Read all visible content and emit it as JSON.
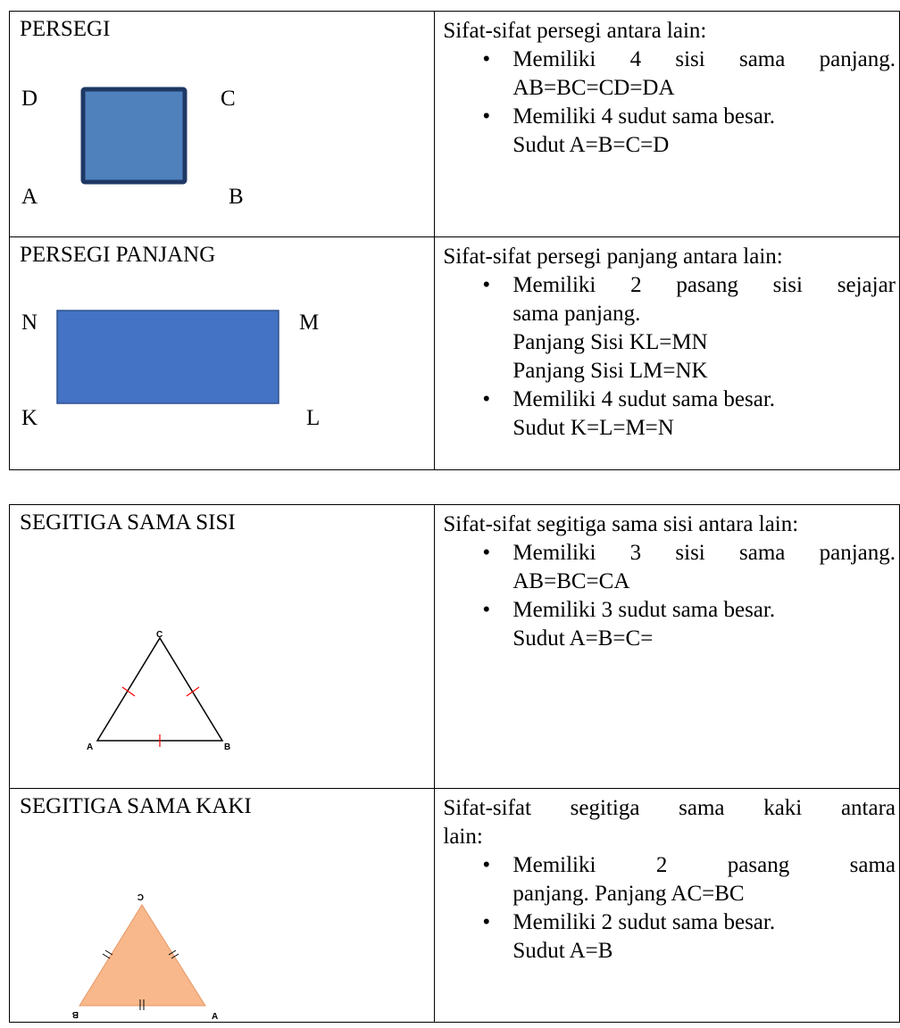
{
  "table1": {
    "row1": {
      "title": "PERSEGI",
      "vertices": {
        "D": "D",
        "C": "C",
        "A": "A",
        "B": "B"
      },
      "fill": "#4f81bd",
      "stroke": "#1f3864",
      "intro": "Sifat-sifat persegi antara lain:",
      "bullets": [
        {
          "line1": "Memiliki 4 sisi sama panjang.",
          "line2": "AB=BC=CD=DA"
        },
        {
          "line1": "Memiliki 4 sudut sama besar.",
          "line2": "Sudut A=B=C=D"
        }
      ]
    },
    "row2": {
      "title": "PERSEGI PANJANG",
      "vertices": {
        "N": "N",
        "M": "M",
        "K": "K",
        "L": "L"
      },
      "fill": "#4472c4",
      "intro": "Sifat-sifat persegi panjang antara lain:",
      "bullets": [
        {
          "line1": "Memiliki 2 pasang sisi sejajar",
          "line2": "sama panjang.",
          "line3": "Panjang Sisi KL=MN",
          "line4": "Panjang Sisi LM=NK"
        },
        {
          "line1": "Memiliki 4 sudut sama besar.",
          "line2": "Sudut K=L=M=N"
        }
      ]
    }
  },
  "table2": {
    "row1": {
      "title": "SEGITIGA SAMA SISI",
      "vertices": {
        "A": "A",
        "B": "B",
        "C": "C"
      },
      "tick_color": "#ff0000",
      "intro": "Sifat-sifat segitiga sama sisi antara lain:",
      "bullets": [
        {
          "line1": "Memiliki 3 sisi sama panjang.",
          "line2": "AB=BC=CA"
        },
        {
          "line1": "Memiliki 3 sudut sama besar.",
          "line2": "Sudut A=B=C="
        }
      ]
    },
    "row2": {
      "title": "SEGITIGA SAMA KAKI",
      "vertices": {
        "A": "A",
        "B": "B",
        "C": "C"
      },
      "fill": "#f8b88b",
      "intro_line1": "Sifat-sifat segitiga sama kaki antara",
      "intro_line2": "lain:",
      "bullets": [
        {
          "line1": "Memiliki 2 pasang sama",
          "line2": "panjang. Panjang AC=BC"
        },
        {
          "line1": "Memiliki 2 sudut sama besar.",
          "line2": "Sudut A=B"
        }
      ]
    }
  }
}
